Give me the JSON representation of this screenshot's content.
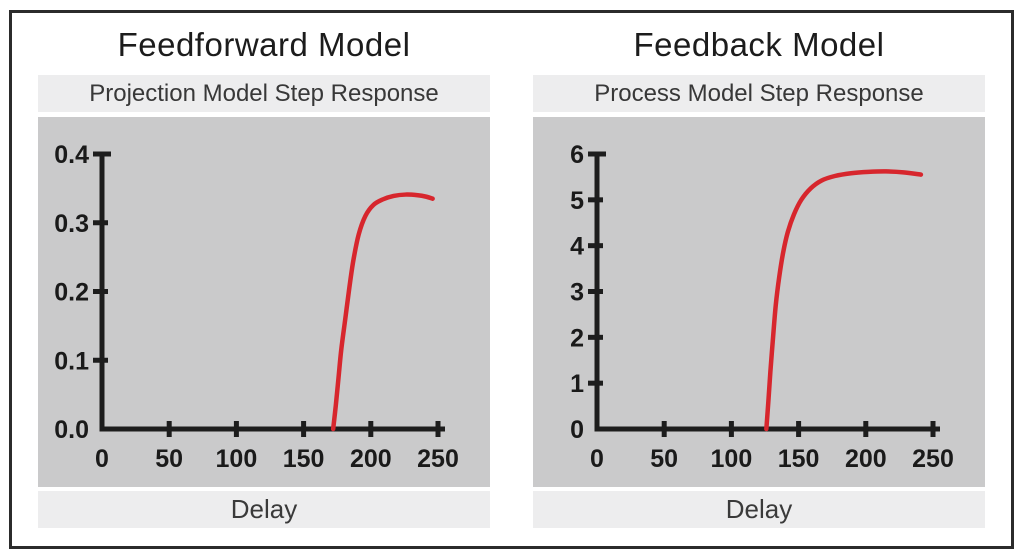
{
  "page": {
    "background_color": "#ffffff",
    "frame_border_color": "#2b2b2b",
    "plot_background_color": "#cacacb",
    "band_background_color": "#ededee",
    "axis_color": "#1d1d1d",
    "tick_label_color": "#1a1a1a"
  },
  "chart_data": [
    {
      "type": "line",
      "title": "Feedforward Model",
      "subtitle": "Projection Model Step Response",
      "xlabel": "Delay",
      "ylabel": "",
      "xlim": [
        0,
        250
      ],
      "ylim": [
        0,
        0.4
      ],
      "x_ticks": [
        0,
        50,
        100,
        150,
        200,
        250
      ],
      "x_tick_labels": [
        "0",
        "50",
        "100",
        "150",
        "200",
        "250"
      ],
      "y_ticks": [
        0,
        0.1,
        0.2,
        0.3,
        0.4
      ],
      "y_tick_labels": [
        "0.0",
        "0.1",
        "0.2",
        "0.3",
        "0.4"
      ],
      "grid": false,
      "legend": "none",
      "series": [
        {
          "name": "projection-model-step-response",
          "color": "#d7262d",
          "points": [
            [
              172,
              0
            ],
            [
              174,
              0.035
            ],
            [
              176,
              0.075
            ],
            [
              178,
              0.115
            ],
            [
              181,
              0.16
            ],
            [
              184,
              0.205
            ],
            [
              187,
              0.245
            ],
            [
              191,
              0.283
            ],
            [
              196,
              0.31
            ],
            [
              202,
              0.326
            ],
            [
              209,
              0.334
            ],
            [
              217,
              0.339
            ],
            [
              226,
              0.341
            ],
            [
              235,
              0.34
            ],
            [
              241,
              0.338
            ],
            [
              246,
              0.335
            ]
          ]
        }
      ]
    },
    {
      "type": "line",
      "title": "Feedback Model",
      "subtitle": "Process Model Step Response",
      "xlabel": "Delay",
      "ylabel": "",
      "xlim": [
        0,
        250
      ],
      "ylim": [
        0,
        6
      ],
      "x_ticks": [
        0,
        50,
        100,
        150,
        200,
        250
      ],
      "x_tick_labels": [
        "0",
        "50",
        "100",
        "150",
        "200",
        "250"
      ],
      "y_ticks": [
        0,
        1,
        2,
        3,
        4,
        5,
        6
      ],
      "y_tick_labels": [
        "0",
        "1",
        "2",
        "3",
        "4",
        "5",
        "6"
      ],
      "grid": false,
      "legend": "none",
      "series": [
        {
          "name": "process-model-step-response",
          "color": "#d7262d",
          "points": [
            [
              126,
              0
            ],
            [
              127.5,
              0.6
            ],
            [
              129,
              1.25
            ],
            [
              131,
              2.0
            ],
            [
              133,
              2.7
            ],
            [
              135.5,
              3.3
            ],
            [
              138.5,
              3.85
            ],
            [
              142,
              4.3
            ],
            [
              146.5,
              4.68
            ],
            [
              152,
              5.0
            ],
            [
              159,
              5.25
            ],
            [
              167,
              5.42
            ],
            [
              177,
              5.52
            ],
            [
              189,
              5.58
            ],
            [
              202,
              5.61
            ],
            [
              215,
              5.62
            ],
            [
              228,
              5.6
            ],
            [
              241,
              5.55
            ]
          ]
        }
      ]
    }
  ]
}
